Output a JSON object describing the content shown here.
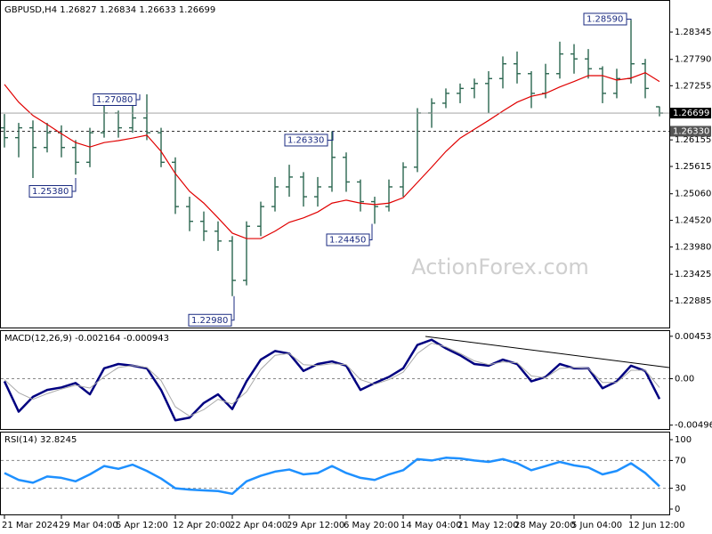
{
  "chart_data": [
    {
      "type": "ohlc",
      "title": "GBPUSD,H4",
      "watermark": "ActionForex.com",
      "color": "#2b6650",
      "categories": [
        "21 Mar 2024",
        null,
        null,
        null,
        "29 Mar 04:00",
        null,
        null,
        null,
        "5 Apr 12:00",
        null,
        null,
        null,
        "12 Apr 20:00",
        null,
        null,
        null,
        "22 Apr 04:00",
        null,
        null,
        null,
        "29 Apr 12:00",
        null,
        null,
        null,
        "6 May 20:00",
        null,
        null,
        null,
        "14 May 04:00",
        null,
        null,
        null,
        "21 May 12:00",
        null,
        null,
        null,
        "28 May 20:00",
        null,
        null,
        null,
        "5 Jun 04:00",
        null,
        null,
        null,
        "12 Jun 12:00",
        null,
        null
      ],
      "open": [
        1.264,
        1.262,
        1.264,
        1.26,
        1.263,
        1.26,
        1.257,
        1.263,
        1.267,
        1.264,
        1.266,
        1.263,
        1.257,
        1.248,
        1.245,
        1.243,
        1.241,
        1.233,
        1.244,
        1.248,
        1.252,
        1.254,
        1.25,
        1.252,
        1.258,
        1.253,
        1.249,
        1.248,
        1.252,
        1.256,
        1.267,
        1.269,
        1.271,
        1.272,
        1.273,
        1.274,
        1.277,
        1.275,
        1.271,
        1.275,
        1.279,
        1.278,
        1.276,
        1.271,
        1.274,
        1.277,
        1.26827
      ],
      "high": [
        1.2668,
        1.265,
        1.2655,
        1.265,
        1.2645,
        1.2615,
        1.264,
        1.269,
        1.2675,
        1.269,
        1.2708,
        1.264,
        1.258,
        1.25,
        1.247,
        1.245,
        1.242,
        1.245,
        1.249,
        1.254,
        1.2565,
        1.255,
        1.254,
        1.2633,
        1.259,
        1.2535,
        1.25,
        1.2535,
        1.257,
        1.268,
        1.27,
        1.272,
        1.273,
        1.274,
        1.2755,
        1.2785,
        1.2795,
        1.2755,
        1.277,
        1.2815,
        1.281,
        1.28,
        1.2765,
        1.276,
        1.2859,
        1.278,
        1.26834
      ],
      "low": [
        1.26,
        1.258,
        1.2538,
        1.259,
        1.258,
        1.2545,
        1.256,
        1.262,
        1.262,
        1.263,
        1.2615,
        1.256,
        1.2465,
        1.243,
        1.241,
        1.239,
        1.2298,
        1.232,
        1.242,
        1.247,
        1.25,
        1.248,
        1.248,
        1.251,
        1.251,
        1.247,
        1.2445,
        1.247,
        1.25,
        1.255,
        1.264,
        1.268,
        1.269,
        1.27,
        1.267,
        1.272,
        1.273,
        1.268,
        1.27,
        1.274,
        1.275,
        1.274,
        1.269,
        1.27,
        1.273,
        1.27,
        1.26633
      ],
      "close": [
        1.262,
        1.264,
        1.26,
        1.263,
        1.26,
        1.257,
        1.263,
        1.267,
        1.264,
        1.266,
        1.263,
        1.257,
        1.248,
        1.245,
        1.243,
        1.241,
        1.233,
        1.244,
        1.248,
        1.252,
        1.254,
        1.25,
        1.252,
        1.258,
        1.253,
        1.249,
        1.248,
        1.252,
        1.256,
        1.267,
        1.269,
        1.271,
        1.272,
        1.273,
        1.274,
        1.277,
        1.275,
        1.271,
        1.275,
        1.279,
        1.278,
        1.276,
        1.271,
        1.274,
        1.277,
        1.272,
        1.26699
      ],
      "overlay": {
        "color": "#e00000",
        "values": [
          1.2728,
          1.2692,
          1.2665,
          1.2647,
          1.2628,
          1.261,
          1.2601,
          1.261,
          1.2614,
          1.2619,
          1.2625,
          1.2592,
          1.2547,
          1.2511,
          1.2487,
          1.2457,
          1.2426,
          1.2415,
          1.2415,
          1.243,
          1.2448,
          1.2457,
          1.2469,
          1.2487,
          1.2493,
          1.2487,
          1.2484,
          1.2487,
          1.2498,
          1.2529,
          1.256,
          1.2592,
          1.2619,
          1.2637,
          1.2655,
          1.2674,
          1.2692,
          1.2704,
          1.271,
          1.2723,
          1.2734,
          1.2746,
          1.2746,
          1.2737,
          1.2741,
          1.2752,
          1.2734
        ]
      },
      "ylim": [
        1.22343,
        1.28924
      ],
      "yticks": [
        1.28345,
        {
          "value": 1.2779,
          "label": "1.27790"
        },
        1.27255,
        1.26155,
        1.25615,
        {
          "value": 1.2506,
          "label": "1.25060"
        },
        {
          "value": 1.2452,
          "label": "1.24520"
        },
        {
          "value": 1.2398,
          "label": "1.23980"
        },
        1.23425,
        1.22885
      ],
      "level": {
        "value": 1.2633,
        "label": "1.26330"
      },
      "annotations": [
        {
          "value": 1.2708,
          "label": "1.27080"
        },
        {
          "value": 1.2538,
          "label": "1.25380"
        },
        {
          "value": 1.2298,
          "label": "1.22980"
        },
        {
          "value": 1.2633,
          "label": "1.26330"
        },
        {
          "value": 1.2445,
          "label": "1.24450"
        },
        {
          "value": 1.2859,
          "label": "1.28590"
        }
      ]
    },
    {
      "type": "line",
      "title": "MACD(12,26,9)",
      "series": [
        {
          "color": "#000080",
          "values": [
            -0.00028,
            -0.00352,
            -0.00194,
            -0.0012,
            -0.00093,
            -0.00046,
            -0.00167,
            0.00111,
            0.00157,
            0.00139,
            0.00111,
            -0.0012,
            -0.00444,
            -0.00416,
            -0.00259,
            -0.00167,
            -0.00324,
            -0.00028,
            0.00204,
            0.00296,
            0.00268,
            0.00083,
            0.00157,
            0.00185,
            0.00139,
            -0.0012,
            -0.00046,
            0.00019,
            0.00111,
            0.00361,
            0.00416,
            0.00324,
            0.0025,
            0.00157,
            0.00139,
            0.00204,
            0.00157,
            -0.00028,
            0.00019,
            0.00157,
            0.00111,
            0.00111,
            -0.00102,
            -0.00028,
            0.00139,
            0.00083,
            -0.002164
          ]
        },
        {
          "color": "#a8a8a8",
          "values": [
            -0.0001,
            -0.0015,
            -0.0022,
            -0.0016,
            -0.0011,
            -0.0007,
            -0.001,
            0.0002,
            0.0012,
            0.0014,
            0.0012,
            -0.0002,
            -0.003,
            -0.004,
            -0.0033,
            -0.0022,
            -0.0027,
            -0.0014,
            0.001,
            0.0025,
            0.0027,
            0.0015,
            0.0014,
            0.0016,
            0.0015,
            -0.0001,
            -0.0006,
            -0.0001,
            0.0007,
            0.0027,
            0.0038,
            0.0034,
            0.0027,
            0.0019,
            0.0015,
            0.0018,
            0.0017,
            0.0003,
            0.0001,
            0.0011,
            0.0012,
            0.0011,
            -0.0004,
            -0.0004,
            0.0009,
            0.0009,
            -0.000943
          ]
        }
      ],
      "ylim": [
        -0.00537,
        0.005088
      ],
      "yticks": [
        0.004533,
        {
          "value": 0,
          "label": "0.00"
        },
        -0.00496
      ]
    },
    {
      "type": "line",
      "title": "RSI(14)",
      "series": [
        {
          "color": "#1e90ff",
          "values": [
            52,
            42,
            38,
            47,
            45,
            40,
            50,
            62,
            58,
            64,
            55,
            44,
            30,
            28,
            27,
            26,
            22,
            40,
            48,
            54,
            57,
            50,
            52,
            62,
            52,
            45,
            42,
            50,
            56,
            72,
            70,
            74,
            73,
            70,
            68,
            72,
            66,
            56,
            62,
            68,
            63,
            60,
            50,
            55,
            66,
            52,
            32.8245
          ]
        }
      ],
      "ylim": [
        -7.7,
        110.3
      ],
      "yticks": [
        100,
        70,
        30,
        0
      ]
    }
  ]
}
